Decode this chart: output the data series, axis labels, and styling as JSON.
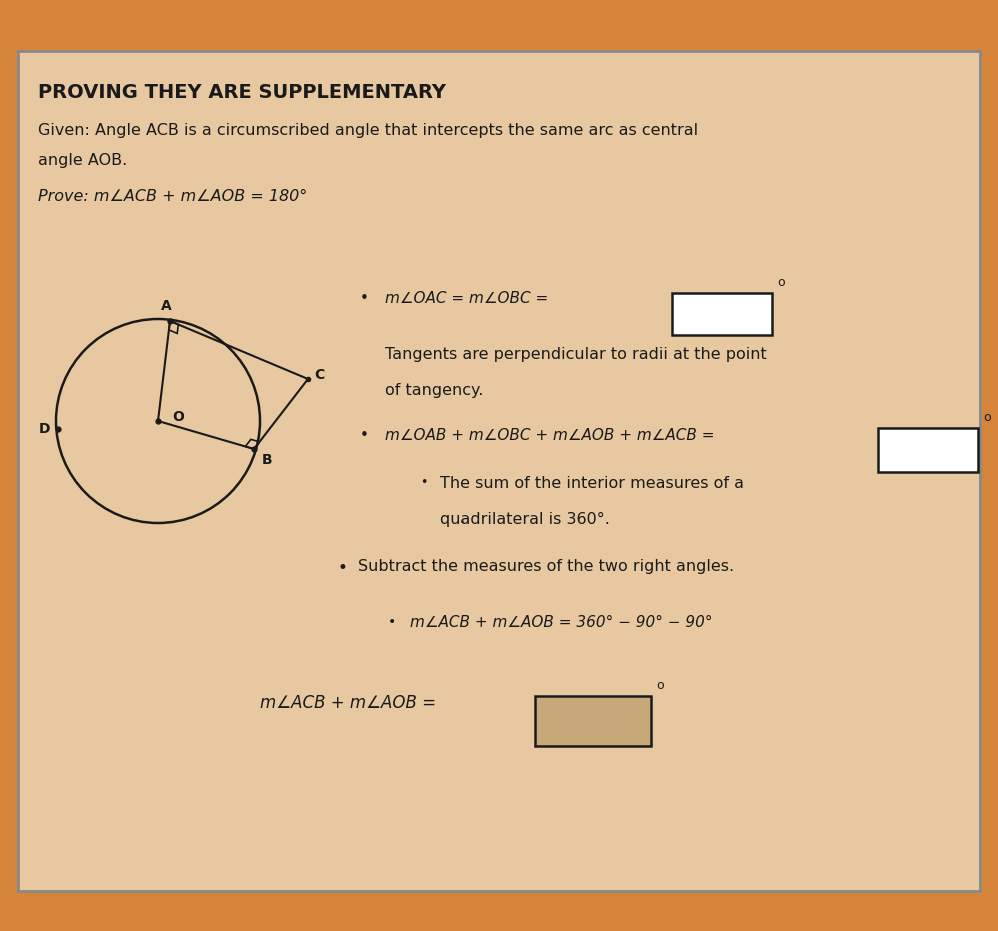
{
  "bg_outer": "#d4853a",
  "bg_inner": "#e8c8a0",
  "border_color": "#555555",
  "text_color": "#1a1a1a",
  "title": "PROVING THEY ARE SUPPLEMENTARY",
  "given_line1": "Given: Angle ACB is a circumscribed angle that intercepts the same arc as central",
  "given_line2": "angle AOB.",
  "prove_text": "Prove: m∠ACB + m∠AOB = 180°",
  "bullet1_text": "m∠OAC = m∠OBC =",
  "bullet2_reason1": "Tangents are perpendicular to radii at the point",
  "bullet2_reason2": "of tangency.",
  "bullet3_text": "m∠OAB + m∠OBC + m∠AOB + m∠ACB =",
  "bullet4_text": "The sum of the interior measures of a",
  "bullet4b_text": "quadrilateral is 360°.",
  "bullet5_text": "Subtract the measures of the two right angles.",
  "bullet6_text": "m∠ACB + m∠AOB = 360° − 90° − 90°",
  "final_text": "m∠ACB + m∠AOB =",
  "deg_super": "o",
  "box1_facecolor": "#ffffff",
  "box2_facecolor": "#ffffff",
  "box_final_facecolor": "#c8a878"
}
